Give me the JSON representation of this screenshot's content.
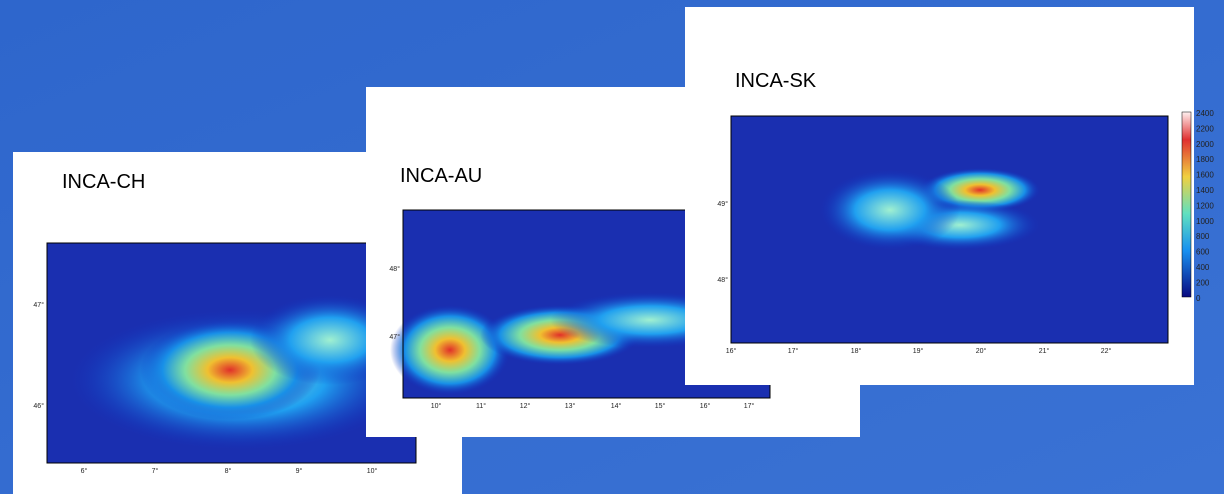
{
  "panels": [
    {
      "title": "INCA-CH",
      "lon_ticks": [
        "6°",
        "7°",
        "8°",
        "9°",
        "10°"
      ],
      "lat_ticks": [
        "47°",
        "46°"
      ]
    },
    {
      "title": "INCA-AU",
      "lon_ticks": [
        "10°",
        "11°",
        "12°",
        "13°",
        "14°",
        "15°",
        "16°",
        "17°"
      ],
      "lat_ticks": [
        "48°",
        "47°"
      ]
    },
    {
      "title": "INCA-SK",
      "lon_ticks": [
        "16°",
        "17°",
        "18°",
        "19°",
        "20°",
        "21°",
        "22°"
      ],
      "lat_ticks": [
        "49°",
        "48°"
      ],
      "colorbar": [
        "2400",
        "2200",
        "2000",
        "1800",
        "1600",
        "1400",
        "1200",
        "1000",
        "800",
        "600",
        "400",
        "200",
        "0"
      ]
    }
  ]
}
